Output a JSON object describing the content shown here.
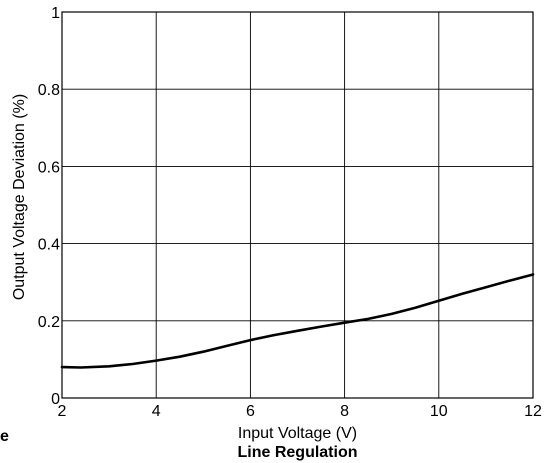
{
  "chart_data": {
    "type": "line",
    "title": "Line Regulation",
    "xlabel": "Input Voltage (V)",
    "ylabel": "Output Voltage Deviation (%)",
    "xlim": [
      2,
      12
    ],
    "ylim": [
      0,
      1
    ],
    "xticks": [
      2,
      4,
      6,
      8,
      10,
      12
    ],
    "yticks": [
      0,
      0.2,
      0.4,
      0.6,
      0.8,
      1
    ],
    "grid": true,
    "series": [
      {
        "color": "#000000",
        "x": [
          2,
          2.4,
          3,
          3.5,
          4,
          4.5,
          5,
          5.5,
          6,
          6.5,
          7,
          7.5,
          8,
          8.5,
          9,
          9.5,
          10,
          10.5,
          11,
          11.5,
          12
        ],
        "y": [
          0.08,
          0.079,
          0.082,
          0.088,
          0.097,
          0.107,
          0.12,
          0.135,
          0.15,
          0.163,
          0.174,
          0.185,
          0.195,
          0.205,
          0.218,
          0.234,
          0.252,
          0.27,
          0.287,
          0.304,
          0.32
        ]
      }
    ],
    "stray_label": "e"
  }
}
